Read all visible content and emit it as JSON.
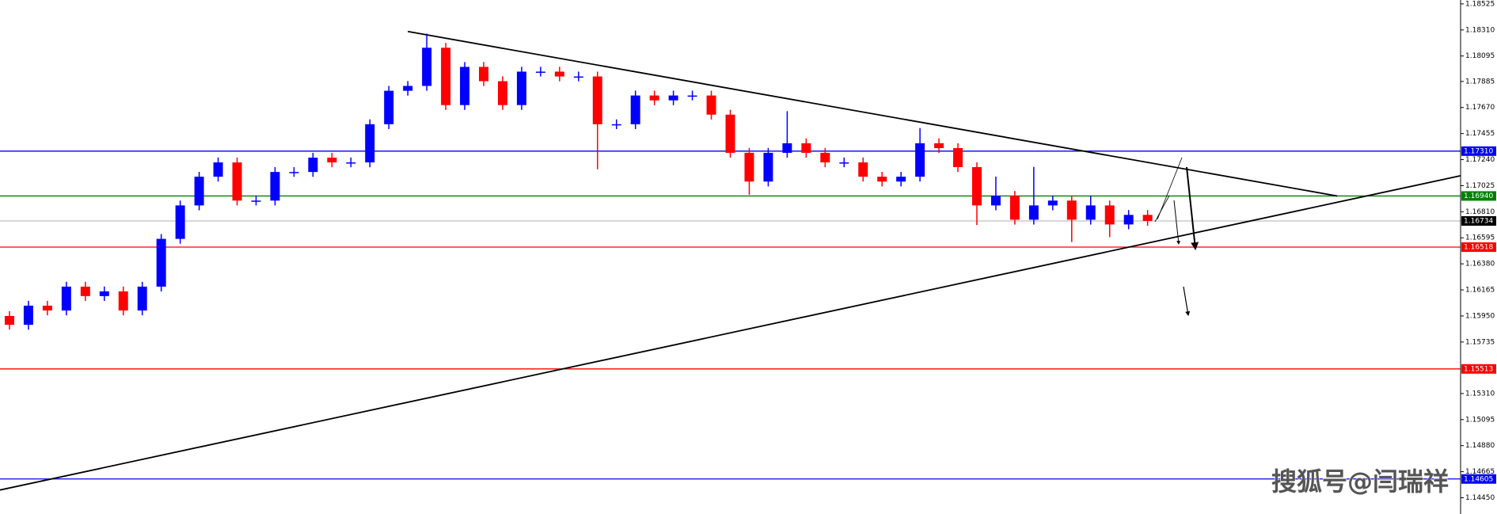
{
  "chart_data": {
    "type": "candlestick",
    "watermark": "搜狐号@闫瑞祥",
    "up_color": "#0000ff",
    "down_color": "#ff0000",
    "xlim": [
      -0.5,
      76.5
    ],
    "ylim": [
      1.14316,
      1.18557
    ],
    "yticks": [
      1.18525,
      {
        "value": 1.1831,
        "label": "1.18310"
      },
      1.18095,
      1.17885,
      {
        "value": 1.1767,
        "label": "1.17670"
      },
      1.17455,
      {
        "value": 1.1724,
        "label": "1.17240"
      },
      1.17025,
      {
        "value": 1.1681,
        "label": "1.16810"
      },
      1.16595,
      {
        "value": 1.1638,
        "label": "1.16380"
      },
      1.16165,
      {
        "value": 1.1595,
        "label": "1.15950"
      },
      1.15735,
      {
        "value": 1.1531,
        "label": "1.15310"
      },
      1.15095,
      {
        "value": 1.1488,
        "label": "1.14880"
      },
      1.14665,
      {
        "value": 1.1445,
        "label": "1.14450"
      }
    ],
    "levels": [
      {
        "value": 1.1731,
        "label": "1.17310",
        "color": "#0000ff",
        "label_color": "#0000ff"
      },
      {
        "value": 1.1694,
        "label": "1.16940",
        "color": "#008000",
        "label_color": "#008000"
      },
      {
        "value": 1.16734,
        "label": "1.16734",
        "color": "#c0c0c0",
        "label_color": "#000000"
      },
      {
        "value": 1.16518,
        "label": "1.16518",
        "color": "#ff0000",
        "label_color": "#ff0000"
      },
      {
        "value": 1.15513,
        "label": "1.15513",
        "color": "#ff0000",
        "label_color": "#ff0000"
      },
      {
        "value": 1.14605,
        "label": "1.14605",
        "color": "#0000ff",
        "label_color": "#0000ff"
      }
    ],
    "trendlines": [
      {
        "x": [
          21,
          70
        ],
        "y": [
          1.18297,
          1.1694
        ],
        "color": "#000000"
      },
      {
        "x": [
          -0.5,
          76.5
        ],
        "y": [
          1.14514,
          1.17107
        ],
        "color": "#000000"
      }
    ],
    "open": [
      1.1595,
      1.15877,
      1.16035,
      1.15995,
      1.16192,
      1.16114,
      1.16153,
      1.15995,
      1.16192,
      1.16586,
      1.16862,
      1.17099,
      1.17217,
      1.16902,
      1.16902,
      1.17138,
      1.17138,
      1.17256,
      1.17217,
      1.17217,
      1.17532,
      1.17808,
      1.17848,
      1.18163,
      1.1769,
      1.18005,
      1.17887,
      1.1769,
      1.17966,
      1.17966,
      1.17926,
      1.17926,
      1.17532,
      1.17532,
      1.17769,
      1.17729,
      1.17769,
      1.17769,
      1.17611,
      1.17296,
      1.17059,
      1.17296,
      1.17375,
      1.17296,
      1.17217,
      1.17217,
      1.17099,
      1.17059,
      1.17099,
      1.17375,
      1.17335,
      1.17178,
      1.16862,
      1.16941,
      1.16744,
      1.16862,
      1.16902,
      1.16744,
      1.16862,
      1.16705,
      1.16784
    ],
    "high": [
      1.1599,
      1.16075,
      1.16075,
      1.16232,
      1.16232,
      1.16193,
      1.16193,
      1.16232,
      1.16626,
      1.16902,
      1.17139,
      1.17257,
      1.17257,
      1.16942,
      1.17178,
      1.17178,
      1.17296,
      1.17296,
      1.17257,
      1.17572,
      1.17848,
      1.17888,
      1.1828,
      1.18203,
      1.18045,
      1.18045,
      1.17927,
      1.18006,
      1.18006,
      1.18006,
      1.17966,
      1.17966,
      1.17572,
      1.17809,
      1.17809,
      1.17809,
      1.17809,
      1.17809,
      1.17651,
      1.17336,
      1.17336,
      1.1764,
      1.17415,
      1.17336,
      1.17257,
      1.17257,
      1.17139,
      1.17139,
      1.175,
      1.17415,
      1.17375,
      1.17218,
      1.171,
      1.16981,
      1.1718,
      1.16942,
      1.16942,
      1.16942,
      1.16902,
      1.16824,
      1.16824
    ],
    "low": [
      1.15837,
      1.15837,
      1.15955,
      1.15955,
      1.16074,
      1.16074,
      1.15955,
      1.15955,
      1.16152,
      1.16546,
      1.16822,
      1.17059,
      1.16862,
      1.16862,
      1.16862,
      1.17098,
      1.17098,
      1.17177,
      1.17177,
      1.17177,
      1.17492,
      1.17768,
      1.17808,
      1.1765,
      1.1765,
      1.17847,
      1.1765,
      1.1765,
      1.17926,
      1.17886,
      1.17886,
      1.1716,
      1.17492,
      1.17492,
      1.17689,
      1.17689,
      1.17729,
      1.17571,
      1.17256,
      1.1695,
      1.17019,
      1.17256,
      1.17256,
      1.17177,
      1.17177,
      1.17059,
      1.17019,
      1.17019,
      1.17059,
      1.17295,
      1.17138,
      1.167,
      1.16822,
      1.16704,
      1.16704,
      1.16822,
      1.1656,
      1.16704,
      1.166,
      1.16665,
      1.16694
    ],
    "close": [
      1.15877,
      1.16035,
      1.15995,
      1.16192,
      1.16114,
      1.16153,
      1.15995,
      1.16192,
      1.16586,
      1.16862,
      1.17099,
      1.17217,
      1.16902,
      1.16902,
      1.17138,
      1.17138,
      1.17256,
      1.17217,
      1.17217,
      1.17532,
      1.17808,
      1.17848,
      1.18163,
      1.1769,
      1.18005,
      1.17887,
      1.1769,
      1.17966,
      1.17966,
      1.17926,
      1.17926,
      1.17532,
      1.17532,
      1.17769,
      1.17729,
      1.17769,
      1.17769,
      1.17611,
      1.17296,
      1.17059,
      1.17296,
      1.17375,
      1.17296,
      1.17217,
      1.17217,
      1.17099,
      1.17059,
      1.17099,
      1.17375,
      1.17335,
      1.17178,
      1.16862,
      1.16941,
      1.16744,
      1.16862,
      1.16902,
      1.16744,
      1.16862,
      1.16705,
      1.16784,
      1.16734
    ]
  }
}
